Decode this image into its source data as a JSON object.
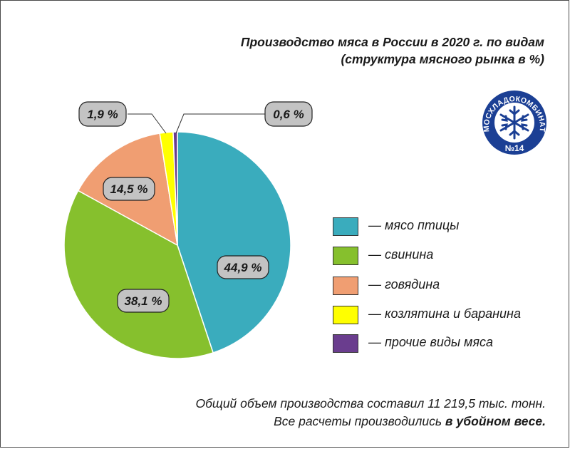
{
  "chart_data": {
    "type": "pie",
    "title_line1": "Производство мяса в России в 2020 г. по видам",
    "title_line2": "(структура мясного рынка в %)",
    "slices": [
      {
        "label": "— мясо птицы",
        "value": 44.9,
        "value_label": "44,9 %",
        "color": "#3aacbd"
      },
      {
        "label": "— свинина",
        "value": 38.1,
        "value_label": "38,1 %",
        "color": "#86c02d"
      },
      {
        "label": "— говядина",
        "value": 14.5,
        "value_label": "14,5 %",
        "color": "#f09e72"
      },
      {
        "label": "— козлятина и баранина",
        "value": 1.9,
        "value_label": "1,9 %",
        "color": "#ffff00"
      },
      {
        "label": "— прочие виды мяса",
        "value": 0.6,
        "value_label": "0,6 %",
        "color": "#6a3d8e"
      }
    ],
    "legend_position": "right"
  },
  "logo": {
    "text_arc": "МОСХЛАДОКОМБИНАТ",
    "text_bottom": "№14",
    "colors": {
      "outer": "#1b3f94",
      "inner": "#ffffff",
      "snowflake": "#1b3f94"
    }
  },
  "footer": {
    "line1": "Общий объем производства составил 11 219,5 тыс. тонн.",
    "line2_prefix": "Все расчеты производились ",
    "line2_bold": "в убойном весе."
  }
}
